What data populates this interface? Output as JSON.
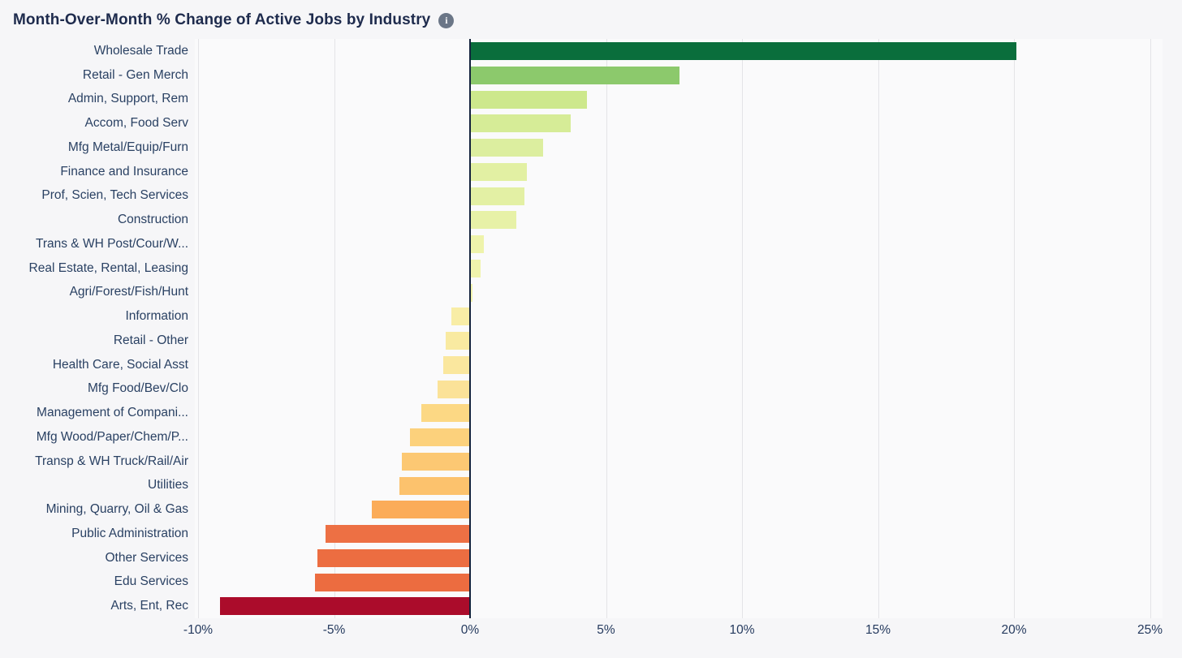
{
  "header": {
    "title": "Month-Over-Month % Change of Active Jobs by Industry",
    "info_icon_glyph": "i"
  },
  "chart_data": {
    "type": "bar",
    "orientation": "horizontal",
    "title": "Month-Over-Month % Change of Active Jobs by Industry",
    "xlabel": "",
    "ylabel": "",
    "xlim": [
      -10,
      25
    ],
    "grid": true,
    "unit": "%",
    "categories": [
      "Wholesale Trade",
      "Retail - Gen Merch",
      "Admin, Support, Rem",
      "Accom, Food Serv",
      "Mfg Metal/Equip/Furn",
      "Finance and Insurance",
      "Prof, Scien, Tech Services",
      "Construction",
      "Trans & WH Post/Cour/W...",
      "Real Estate, Rental, Leasing",
      "Agri/Forest/Fish/Hunt",
      "Information",
      "Retail - Other",
      "Health Care, Social Asst",
      "Mfg Food/Bev/Clo",
      "Management of Compani...",
      "Mfg Wood/Paper/Chem/P...",
      "Transp & WH Truck/Rail/Air",
      "Utilities",
      "Mining, Quarry, Oil & Gas",
      "Public Administration",
      "Other Services",
      "Edu Services",
      "Arts, Ent, Rec"
    ],
    "values": [
      20.1,
      7.7,
      4.3,
      3.7,
      2.7,
      2.1,
      2.0,
      1.7,
      0.5,
      0.4,
      0.1,
      -0.7,
      -0.9,
      -1.0,
      -1.2,
      -1.8,
      -2.2,
      -2.5,
      -2.6,
      -3.6,
      -5.3,
      -5.6,
      -5.7,
      -9.2
    ],
    "bar_colors": [
      "#0a6e3c",
      "#8cc96c",
      "#cde88c",
      "#d6ec97",
      "#dcee9f",
      "#e2f0a3",
      "#e3f0a4",
      "#e7f1a7",
      "#eef3ab",
      "#f0f3ac",
      "#f2f3ae",
      "#f8eda6",
      "#f9eaa1",
      "#fae79e",
      "#fbe298",
      "#fcd884",
      "#fcd17c",
      "#fcc873",
      "#fcc26d",
      "#fbac59",
      "#ed7044",
      "#ec6d41",
      "#ec6c40",
      "#ab0c2b"
    ],
    "x_ticks": [
      -10,
      -5,
      0,
      5,
      10,
      15,
      20,
      25
    ],
    "x_tick_labels": [
      "-10%",
      "-5%",
      "0%",
      "5%",
      "10%",
      "15%",
      "20%",
      "25%"
    ],
    "legend": null
  },
  "colors": {
    "page_background": "#f6f6f8",
    "plot_background": "#fafafb",
    "gridline": "#e4e4e7",
    "zero_axis_line": "#13223c",
    "title_text": "#1e2b4d",
    "label_text": "#2a4163",
    "info_icon_background": "#6b7687"
  }
}
